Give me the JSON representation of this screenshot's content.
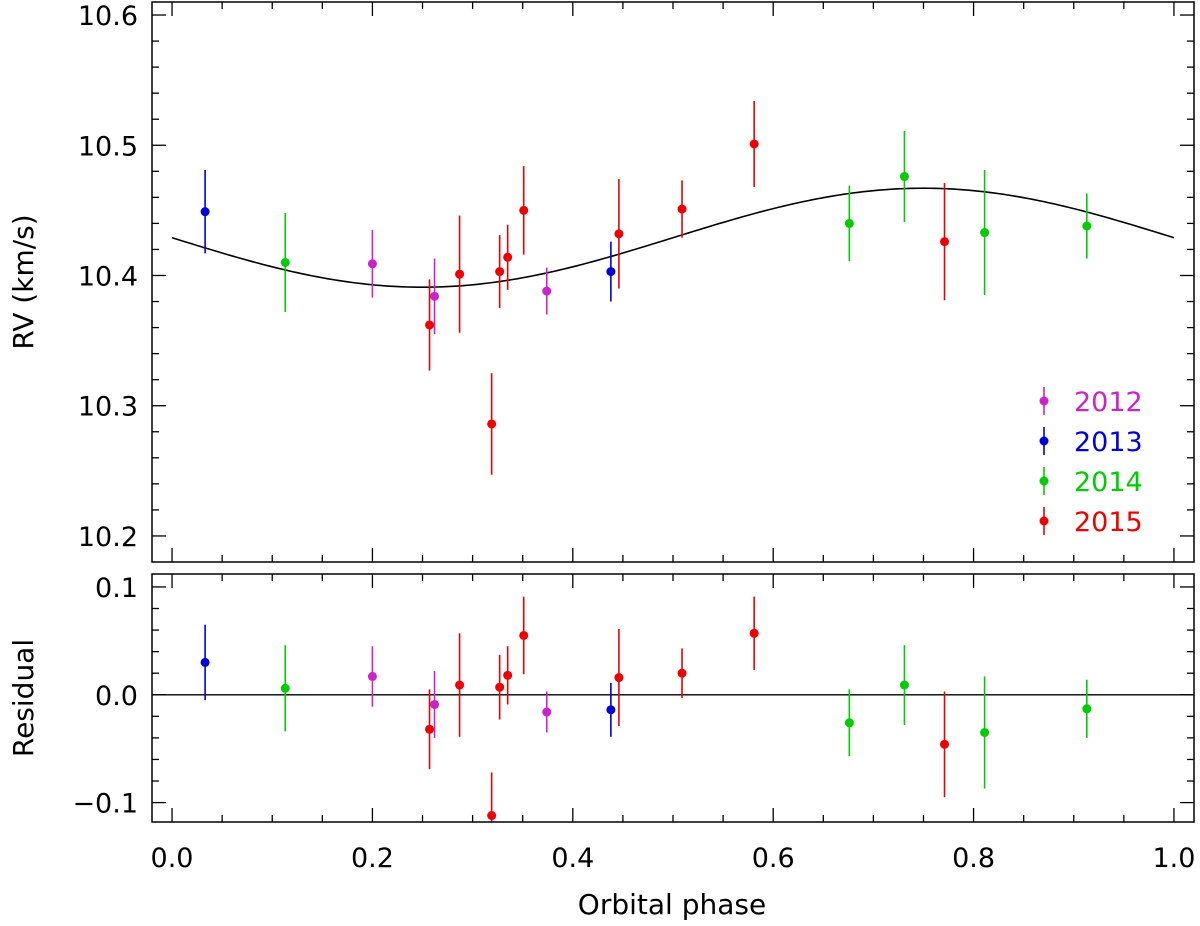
{
  "chart_data": [
    {
      "panel": "rv",
      "type": "scatter",
      "title": "",
      "xlabel": "",
      "ylabel": "RV (km/s)",
      "xlim": [
        -0.02,
        1.02
      ],
      "ylim": [
        10.18,
        10.61
      ],
      "yticks": [
        10.2,
        10.3,
        10.4,
        10.5,
        10.6
      ],
      "ytick_labels": [
        "10.2",
        "10.3",
        "10.4",
        "10.5",
        "10.6"
      ],
      "model": {
        "type": "sine",
        "offset": 10.429,
        "amplitude": 0.038,
        "phase_of_max": 0.75
      },
      "legend_position": "bottom-right",
      "series": [
        {
          "name": "2012",
          "color": "#cc22cc",
          "points": [
            {
              "x": 0.2,
              "y": 10.409,
              "err": 0.026
            },
            {
              "x": 0.262,
              "y": 10.384,
              "err": 0.029
            },
            {
              "x": 0.374,
              "y": 10.388,
              "err": 0.018
            }
          ]
        },
        {
          "name": "2013",
          "color": "#0000dd",
          "points": [
            {
              "x": 0.033,
              "y": 10.449,
              "err": 0.032
            },
            {
              "x": 0.438,
              "y": 10.403,
              "err": 0.023
            }
          ]
        },
        {
          "name": "2014",
          "color": "#00cc00",
          "points": [
            {
              "x": 0.113,
              "y": 10.41,
              "err": 0.038
            },
            {
              "x": 0.676,
              "y": 10.44,
              "err": 0.029
            },
            {
              "x": 0.731,
              "y": 10.476,
              "err": 0.035
            },
            {
              "x": 0.811,
              "y": 10.433,
              "err": 0.048
            },
            {
              "x": 0.913,
              "y": 10.438,
              "err": 0.025
            }
          ]
        },
        {
          "name": "2015",
          "color": "#ee0000",
          "points": [
            {
              "x": 0.257,
              "y": 10.362,
              "err": 0.035
            },
            {
              "x": 0.287,
              "y": 10.401,
              "err": 0.045
            },
            {
              "x": 0.319,
              "y": 10.286,
              "err": 0.039
            },
            {
              "x": 0.327,
              "y": 10.403,
              "err": 0.028
            },
            {
              "x": 0.335,
              "y": 10.414,
              "err": 0.025
            },
            {
              "x": 0.351,
              "y": 10.45,
              "err": 0.034
            },
            {
              "x": 0.446,
              "y": 10.432,
              "err": 0.042
            },
            {
              "x": 0.509,
              "y": 10.451,
              "err": 0.022
            },
            {
              "x": 0.581,
              "y": 10.501,
              "err": 0.033
            },
            {
              "x": 0.771,
              "y": 10.426,
              "err": 0.045
            }
          ]
        }
      ]
    },
    {
      "panel": "residual",
      "type": "scatter",
      "title": "",
      "xlabel": "Orbital phase",
      "ylabel": "Residual",
      "xlim": [
        -0.02,
        1.02
      ],
      "ylim": [
        -0.118,
        0.112
      ],
      "xticks": [
        0.0,
        0.2,
        0.4,
        0.6,
        0.8,
        1.0
      ],
      "xtick_labels": [
        "0.0",
        "0.2",
        "0.4",
        "0.6",
        "0.8",
        "1.0"
      ],
      "yticks": [
        -0.1,
        0.0,
        0.1
      ],
      "ytick_labels": [
        "−0.1",
        "0.0",
        "0.1"
      ],
      "zero_line": 0.0,
      "series": [
        {
          "name": "2012",
          "color": "#cc22cc",
          "points": [
            {
              "x": 0.2,
              "y": 0.017,
              "err": 0.028
            },
            {
              "x": 0.262,
              "y": -0.009,
              "err": 0.031
            },
            {
              "x": 0.374,
              "y": -0.016,
              "err": 0.019
            }
          ]
        },
        {
          "name": "2013",
          "color": "#0000dd",
          "points": [
            {
              "x": 0.033,
              "y": 0.03,
              "err": 0.035
            },
            {
              "x": 0.438,
              "y": -0.014,
              "err": 0.025
            }
          ]
        },
        {
          "name": "2014",
          "color": "#00cc00",
          "points": [
            {
              "x": 0.113,
              "y": 0.006,
              "err": 0.04
            },
            {
              "x": 0.676,
              "y": -0.026,
              "err": 0.031
            },
            {
              "x": 0.731,
              "y": 0.009,
              "err": 0.037
            },
            {
              "x": 0.811,
              "y": -0.035,
              "err": 0.052
            },
            {
              "x": 0.913,
              "y": -0.013,
              "err": 0.027
            }
          ]
        },
        {
          "name": "2015",
          "color": "#ee0000",
          "points": [
            {
              "x": 0.257,
              "y": -0.032,
              "err": 0.037
            },
            {
              "x": 0.287,
              "y": 0.009,
              "err": 0.048
            },
            {
              "x": 0.319,
              "y": -0.112,
              "err": 0.04
            },
            {
              "x": 0.327,
              "y": 0.007,
              "err": 0.03
            },
            {
              "x": 0.335,
              "y": 0.018,
              "err": 0.027
            },
            {
              "x": 0.351,
              "y": 0.055,
              "err": 0.036
            },
            {
              "x": 0.446,
              "y": 0.016,
              "err": 0.045
            },
            {
              "x": 0.509,
              "y": 0.02,
              "err": 0.023
            },
            {
              "x": 0.581,
              "y": 0.057,
              "err": 0.034
            },
            {
              "x": 0.771,
              "y": -0.046,
              "err": 0.049
            }
          ]
        }
      ]
    }
  ]
}
